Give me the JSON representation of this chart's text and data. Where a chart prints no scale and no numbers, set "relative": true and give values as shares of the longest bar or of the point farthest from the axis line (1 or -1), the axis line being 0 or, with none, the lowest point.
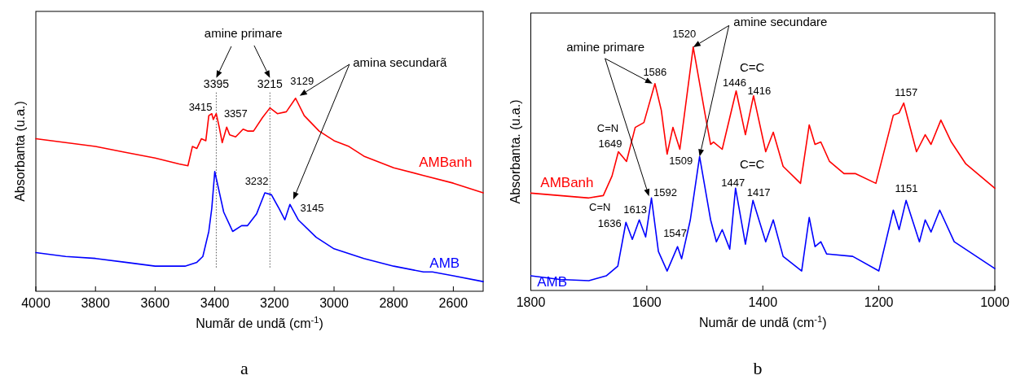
{
  "chart_data": [
    {
      "type": "line",
      "title": "a",
      "xlabel": "Numãr de undã (cm$^{-1}$)",
      "ylabel": "Absorbanta (u.a.)",
      "relative": true,
      "xlim": [
        4000,
        2500
      ],
      "xticks": [
        4000,
        3800,
        3600,
        3400,
        3200,
        3000,
        2800,
        2600
      ],
      "series": [
        {
          "name": "AMBanh",
          "color": "#ff0000",
          "x": [
            4000,
            3900,
            3800,
            3700,
            3600,
            3520,
            3490,
            3475,
            3460,
            3445,
            3430,
            3420,
            3410,
            3405,
            3395,
            3385,
            3375,
            3360,
            3350,
            3330,
            3305,
            3290,
            3270,
            3240,
            3215,
            3190,
            3160,
            3129,
            3100,
            3050,
            3000,
            2950,
            2900,
            2800,
            2700,
            2600,
            2500
          ],
          "values": [
            0.79,
            0.77,
            0.75,
            0.72,
            0.69,
            0.66,
            0.65,
            0.75,
            0.74,
            0.79,
            0.78,
            0.91,
            0.92,
            0.89,
            0.92,
            0.85,
            0.77,
            0.85,
            0.81,
            0.8,
            0.84,
            0.83,
            0.83,
            0.9,
            0.95,
            0.92,
            0.93,
            1.0,
            0.91,
            0.83,
            0.78,
            0.75,
            0.7,
            0.64,
            0.6,
            0.56,
            0.51
          ]
        },
        {
          "name": "AMB",
          "color": "#0000ff",
          "x": [
            4000,
            3900,
            3800,
            3700,
            3600,
            3500,
            3460,
            3440,
            3420,
            3410,
            3400,
            3390,
            3370,
            3340,
            3310,
            3290,
            3260,
            3232,
            3210,
            3185,
            3165,
            3148,
            3120,
            3060,
            3000,
            2900,
            2800,
            2700,
            2670,
            2600,
            2500
          ],
          "values": [
            0.2,
            0.18,
            0.17,
            0.15,
            0.13,
            0.13,
            0.15,
            0.18,
            0.31,
            0.43,
            0.62,
            0.55,
            0.41,
            0.31,
            0.34,
            0.34,
            0.4,
            0.51,
            0.5,
            0.43,
            0.37,
            0.45,
            0.37,
            0.28,
            0.22,
            0.17,
            0.13,
            0.1,
            0.1,
            0.08,
            0.05
          ]
        }
      ],
      "ref_lines": [
        {
          "axis": "x",
          "value": 3395,
          "label": "3395",
          "line_style": "dotted",
          "color": "#555555"
        },
        {
          "axis": "x",
          "value": 3215,
          "label": "3215",
          "line_style": "dotted",
          "color": "#555555"
        }
      ],
      "annotations": [
        "amine primare",
        "amina secundarã",
        {
          "text": "3415",
          "x": 3415,
          "y": 0.92
        },
        {
          "text": "3357",
          "x": 3357,
          "y": 0.85
        },
        {
          "text": "3129",
          "x": 3129,
          "y": 1.0
        },
        {
          "text": "3232",
          "x": 3232,
          "y": 0.51
        },
        {
          "text": "3145",
          "x": 3145,
          "y": 0.45
        }
      ]
    },
    {
      "type": "line",
      "title": "b",
      "xlabel": "Numãr de undã (cm$^{-1}$)",
      "ylabel": "Absorbanta. (u.a.)",
      "relative": true,
      "xlim": [
        1800,
        1000
      ],
      "xticks": [
        1800,
        1600,
        1400,
        1200,
        1000
      ],
      "series": [
        {
          "name": "AMBanh",
          "color": "#ff0000",
          "x": [
            1800,
            1700,
            1675,
            1660,
            1649,
            1635,
            1620,
            1605,
            1586,
            1575,
            1565,
            1555,
            1543,
            1520,
            1500,
            1490,
            1485,
            1470,
            1446,
            1430,
            1416,
            1395,
            1382,
            1365,
            1335,
            1320,
            1310,
            1300,
            1285,
            1260,
            1240,
            1205,
            1175,
            1165,
            1157,
            1135,
            1120,
            1110,
            1093,
            1075,
            1050,
            1000
          ],
          "values": [
            0.4,
            0.38,
            0.39,
            0.47,
            0.57,
            0.53,
            0.67,
            0.69,
            0.85,
            0.74,
            0.56,
            0.67,
            0.58,
            1.0,
            0.73,
            0.6,
            0.61,
            0.58,
            0.82,
            0.64,
            0.8,
            0.57,
            0.65,
            0.51,
            0.44,
            0.68,
            0.6,
            0.61,
            0.53,
            0.48,
            0.48,
            0.44,
            0.72,
            0.73,
            0.77,
            0.57,
            0.64,
            0.6,
            0.7,
            0.61,
            0.52,
            0.42
          ]
        },
        {
          "name": "AMB",
          "color": "#0000ff",
          "x": [
            1800,
            1750,
            1700,
            1670,
            1650,
            1636,
            1625,
            1613,
            1602,
            1592,
            1580,
            1565,
            1547,
            1540,
            1525,
            1509,
            1490,
            1480,
            1470,
            1457,
            1447,
            1430,
            1417,
            1395,
            1382,
            1365,
            1333,
            1320,
            1310,
            1300,
            1290,
            1245,
            1200,
            1175,
            1165,
            1153,
            1130,
            1120,
            1110,
            1095,
            1070,
            1000
          ],
          "values": [
            0.06,
            0.045,
            0.04,
            0.06,
            0.1,
            0.28,
            0.21,
            0.29,
            0.22,
            0.38,
            0.16,
            0.08,
            0.18,
            0.13,
            0.29,
            0.55,
            0.29,
            0.2,
            0.25,
            0.17,
            0.42,
            0.19,
            0.37,
            0.2,
            0.29,
            0.14,
            0.08,
            0.3,
            0.18,
            0.2,
            0.15,
            0.14,
            0.08,
            0.33,
            0.25,
            0.37,
            0.2,
            0.29,
            0.24,
            0.33,
            0.2,
            0.09
          ]
        }
      ],
      "annotations": [
        "amine primare",
        "amine secundare",
        {
          "text": "C=N",
          "x": 1649,
          "y": 0.57
        },
        {
          "text": "1649",
          "x": 1649,
          "y": 0.57
        },
        {
          "text": "1586",
          "x": 1586,
          "y": 0.85
        },
        {
          "text": "1520",
          "x": 1520,
          "y": 1.0
        },
        "C=C",
        {
          "text": "1446",
          "x": 1446,
          "y": 0.82
        },
        {
          "text": "1416",
          "x": 1416,
          "y": 0.8
        },
        {
          "text": "1157",
          "x": 1157,
          "y": 0.77
        },
        {
          "text": "C=N",
          "x": 1636,
          "y": 0.28
        },
        {
          "text": "1636",
          "x": 1636,
          "y": 0.28
        },
        {
          "text": "1613",
          "x": 1613,
          "y": 0.29
        },
        {
          "text": "1592",
          "x": 1592,
          "y": 0.38
        },
        {
          "text": "1547",
          "x": 1547,
          "y": 0.18
        },
        {
          "text": "1509",
          "x": 1509,
          "y": 0.55
        },
        "C=C",
        {
          "text": "1447",
          "x": 1447,
          "y": 0.42
        },
        {
          "text": "1417",
          "x": 1417,
          "y": 0.37
        },
        {
          "text": "1151",
          "x": 1151,
          "y": 0.37
        }
      ]
    }
  ]
}
